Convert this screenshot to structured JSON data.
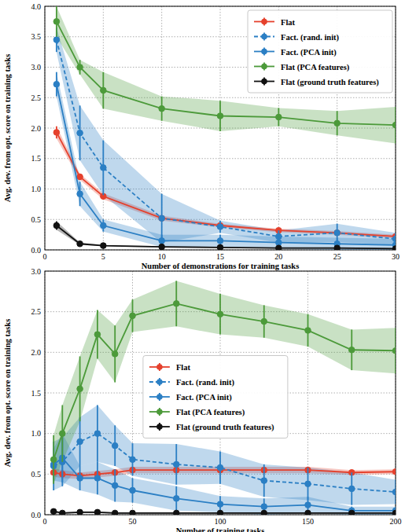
{
  "chart_data": [
    {
      "type": "line",
      "x_label": "Number of demonstrations for training tasks",
      "y_label": "Avg. dev. from opt. score on training tasks",
      "x": [
        1,
        3,
        5,
        10,
        15,
        20,
        25,
        30
      ],
      "xlim": [
        0,
        30
      ],
      "xticks": [
        0,
        5,
        10,
        15,
        20,
        25,
        30
      ],
      "ylim": [
        0,
        4
      ],
      "yticks": [
        {
          "value": 0,
          "label": "0.0"
        },
        {
          "value": 0.5,
          "label": "0.5"
        },
        {
          "value": 1,
          "label": "1.0"
        },
        {
          "value": 1.5,
          "label": "1.5"
        },
        {
          "value": 2,
          "label": "2.0"
        },
        {
          "value": 2.5,
          "label": "2.5"
        },
        {
          "value": 3,
          "label": "3.0"
        },
        {
          "value": 3.5,
          "label": "3.5"
        },
        {
          "value": 4,
          "label": "4.0"
        }
      ],
      "grid": true,
      "legend": "upper right",
      "series": [
        {
          "name": "Flat",
          "color": "#e5412d",
          "marker": "circle",
          "line_style": "solid",
          "values": [
            1.93,
            1.2,
            0.88,
            0.52,
            0.4,
            0.32,
            0.28,
            0.22
          ],
          "errors": [
            0.1,
            0.05,
            0.05,
            0.04,
            0.03,
            0.03,
            0.03,
            0.03
          ]
        },
        {
          "name": "Fact. (rand. init)",
          "color": "#2b7fc4",
          "marker": "circle",
          "line_style": "dashed",
          "values": [
            3.45,
            1.92,
            1.35,
            0.52,
            0.38,
            0.22,
            0.28,
            0.18
          ],
          "errors": [
            0.2,
            0.45,
            0.45,
            0.4,
            0.1,
            0.1,
            0.15,
            0.1
          ]
        },
        {
          "name": "Fact. (PCA init)",
          "color": "#2b7fc4",
          "marker": "circle",
          "line_style": "solid",
          "values": [
            2.72,
            0.92,
            0.4,
            0.15,
            0.15,
            0.12,
            0.1,
            0.08
          ],
          "errors": [
            0.2,
            0.2,
            0.1,
            0.1,
            0.1,
            0.1,
            0.1,
            0.1
          ]
        },
        {
          "name": "Flat (PCA features)",
          "color": "#4c9a3a",
          "marker": "circle",
          "line_style": "solid",
          "values": [
            3.75,
            3.0,
            2.62,
            2.32,
            2.2,
            2.18,
            2.08,
            2.05
          ],
          "errors": [
            0.25,
            0.12,
            0.3,
            0.2,
            0.25,
            0.15,
            0.2,
            0.3
          ]
        },
        {
          "name": "Flat (ground truth features)",
          "color": "#111111",
          "marker": "circle",
          "line_style": "solid",
          "values": [
            0.4,
            0.1,
            0.07,
            0.05,
            0.04,
            0.03,
            0.03,
            0.02
          ],
          "errors": [
            0.07,
            0.02,
            0.01,
            0.01,
            0.01,
            0.01,
            0.01,
            0.01
          ]
        }
      ]
    },
    {
      "type": "line",
      "x_label": "Number of training tasks",
      "y_label": "Avg. dev. from opt. score on training tasks",
      "x": [
        5,
        10,
        20,
        30,
        40,
        50,
        75,
        100,
        125,
        150,
        175,
        200
      ],
      "xlim": [
        0,
        200
      ],
      "xticks": [
        0,
        50,
        100,
        150,
        200
      ],
      "ylim": [
        0,
        3
      ],
      "yticks": [
        {
          "value": 0,
          "label": "0.0"
        },
        {
          "value": 0.5,
          "label": "0.5"
        },
        {
          "value": 1,
          "label": "1.0"
        },
        {
          "value": 1.5,
          "label": "1.5"
        },
        {
          "value": 2,
          "label": "2.0"
        },
        {
          "value": 2.5,
          "label": "2.5"
        },
        {
          "value": 3,
          "label": "3.0"
        }
      ],
      "grid": true,
      "legend": "center",
      "series": [
        {
          "name": "Flat",
          "color": "#e5412d",
          "marker": "circle",
          "line_style": "solid",
          "values": [
            0.52,
            0.5,
            0.48,
            0.5,
            0.52,
            0.55,
            0.55,
            0.55,
            0.55,
            0.55,
            0.52,
            0.53
          ],
          "errors": [
            0.05,
            0.05,
            0.04,
            0.04,
            0.04,
            0.04,
            0.04,
            0.04,
            0.04,
            0.04,
            0.03,
            0.03
          ]
        },
        {
          "name": "Fact. (rand. init)",
          "color": "#2b7fc4",
          "marker": "circle",
          "line_style": "dashed",
          "values": [
            0.6,
            0.65,
            0.9,
            1.0,
            0.85,
            0.68,
            0.62,
            0.58,
            0.42,
            0.38,
            0.32,
            0.28
          ],
          "errors": [
            0.3,
            0.3,
            0.3,
            0.35,
            0.25,
            0.2,
            0.25,
            0.2,
            0.2,
            0.2,
            0.2,
            0.15
          ]
        },
        {
          "name": "Fact. (PCA init)",
          "color": "#2b7fc4",
          "marker": "circle",
          "line_style": "solid",
          "values": [
            0.62,
            0.7,
            0.45,
            0.45,
            0.36,
            0.3,
            0.2,
            0.13,
            0.1,
            0.12,
            0.05,
            0.05
          ],
          "errors": [
            0.2,
            0.3,
            0.15,
            0.2,
            0.2,
            0.15,
            0.15,
            0.1,
            0.1,
            0.1,
            0.05,
            0.05
          ]
        },
        {
          "name": "Flat (PCA features)",
          "color": "#4c9a3a",
          "marker": "circle",
          "line_style": "solid",
          "values": [
            0.68,
            1.0,
            1.55,
            2.22,
            1.98,
            2.45,
            2.6,
            2.47,
            2.38,
            2.27,
            2.03,
            2.02
          ],
          "errors": [
            0.3,
            0.35,
            0.4,
            0.3,
            0.35,
            0.2,
            0.28,
            0.25,
            0.2,
            0.2,
            0.25,
            0.28
          ]
        },
        {
          "name": "Flat (ground truth features)",
          "color": "#111111",
          "marker": "circle",
          "line_style": "solid",
          "values": [
            0.04,
            0.02,
            0.03,
            0.03,
            0.02,
            0.02,
            0.02,
            0.02,
            0.02,
            0.02,
            0.02,
            0.02
          ],
          "errors": [
            0.02,
            0.01,
            0.01,
            0.01,
            0.01,
            0.01,
            0.01,
            0.01,
            0.01,
            0.01,
            0.01,
            0.01
          ]
        }
      ]
    }
  ]
}
